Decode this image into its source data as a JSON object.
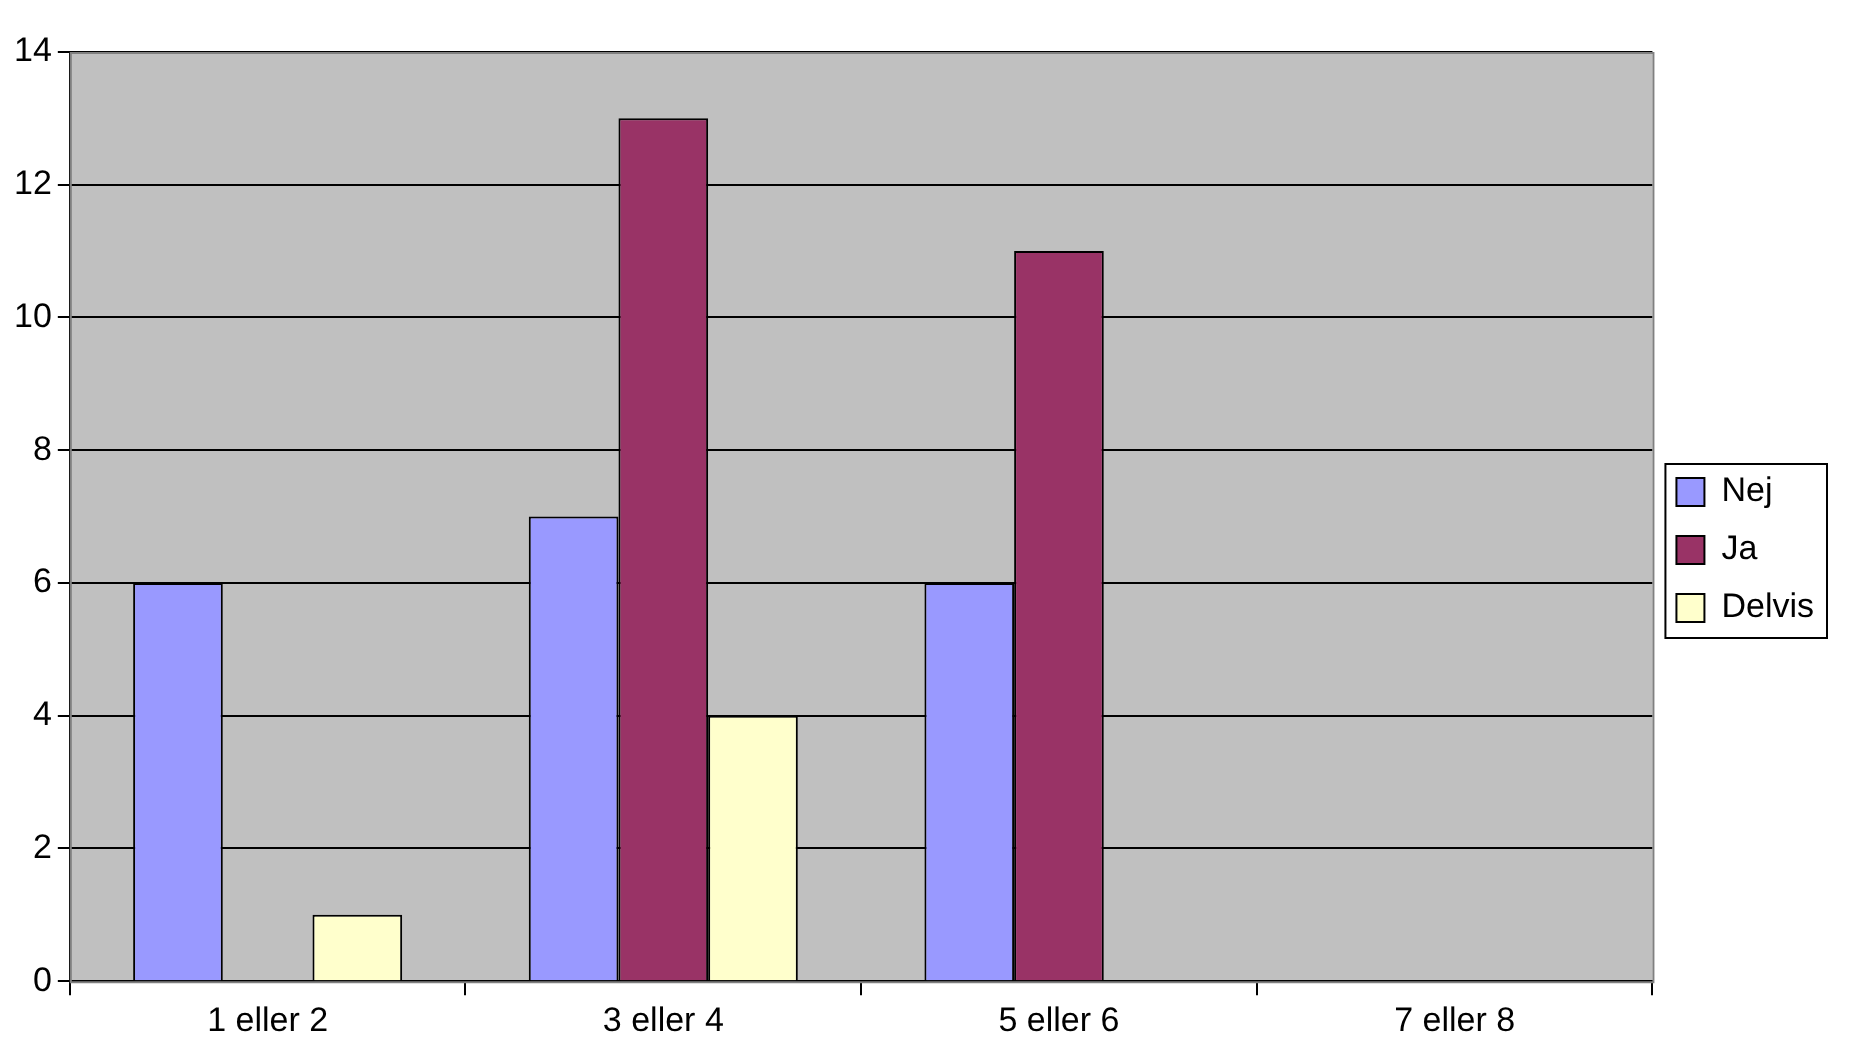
{
  "chart_data": {
    "type": "bar",
    "categories": [
      "1 eller 2",
      "3 eller 4",
      "5 eller 6",
      "7 eller 8"
    ],
    "series": [
      {
        "name": "Nej",
        "color": "#9999ff",
        "values": [
          6,
          7,
          6,
          null
        ]
      },
      {
        "name": "Ja",
        "color": "#993366",
        "values": [
          null,
          13,
          11,
          null
        ]
      },
      {
        "name": "Delvis",
        "color": "#ffffcc",
        "values": [
          1,
          4,
          null,
          null
        ]
      }
    ],
    "ylim": [
      0,
      14
    ],
    "yticks": [
      0,
      2,
      4,
      6,
      8,
      10,
      12,
      14
    ],
    "grid": "y",
    "legend": "right"
  }
}
